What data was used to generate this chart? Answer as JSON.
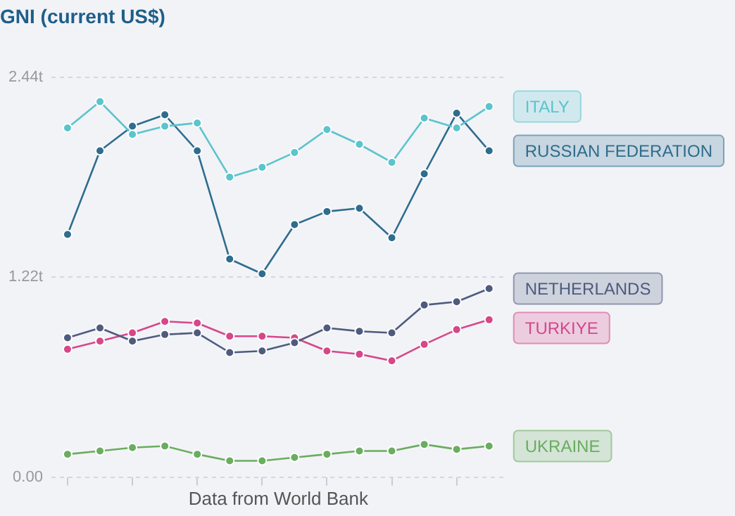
{
  "chart_data": {
    "type": "line",
    "title": "GNI (current US$)",
    "xlabel": "Data from World Bank",
    "categories": [
      null,
      null,
      null,
      null,
      null,
      null,
      null,
      null,
      null,
      null,
      null,
      null,
      null,
      null
    ],
    "series": [
      {
        "name": "ITALY",
        "color": "#5bc4cc",
        "values": [
          2.13,
          2.29,
          2.09,
          2.14,
          2.16,
          1.83,
          1.89,
          1.98,
          2.12,
          2.03,
          1.92,
          2.19,
          2.13,
          2.26
        ]
      },
      {
        "name": "RUSSIAN FEDERATION",
        "color": "#2e6d8e",
        "values": [
          1.48,
          1.99,
          2.14,
          2.21,
          1.99,
          1.33,
          1.24,
          1.54,
          1.62,
          1.64,
          1.46,
          1.85,
          2.22,
          1.99
        ]
      },
      {
        "name": "NETHERLANDS",
        "color": "#4f5b7e",
        "values": [
          0.85,
          0.91,
          0.83,
          0.87,
          0.88,
          0.76,
          0.77,
          0.82,
          0.91,
          0.89,
          0.88,
          1.05,
          1.07,
          1.15
        ]
      },
      {
        "name": "TURKIYE",
        "color": "#d6478a",
        "values": [
          0.78,
          0.83,
          0.88,
          0.95,
          0.94,
          0.86,
          0.86,
          0.85,
          0.77,
          0.75,
          0.71,
          0.81,
          0.9,
          0.96
        ]
      },
      {
        "name": "UKRAINE",
        "color": "#6aad5f",
        "values": [
          0.14,
          0.16,
          0.18,
          0.19,
          0.14,
          0.1,
          0.1,
          0.12,
          0.14,
          0.16,
          0.16,
          0.2,
          0.17,
          0.19
        ]
      }
    ],
    "ylim": [
      0,
      2.44
    ],
    "yticks": [
      {
        "value": 0,
        "label": "0.00"
      },
      {
        "value": 1.22,
        "label": "1.22t"
      },
      {
        "value": 2.44,
        "label": "2.44t"
      }
    ],
    "grid": "y",
    "marker": "circle",
    "line_style": "solid",
    "tick_labels": "y",
    "legend": "right"
  }
}
